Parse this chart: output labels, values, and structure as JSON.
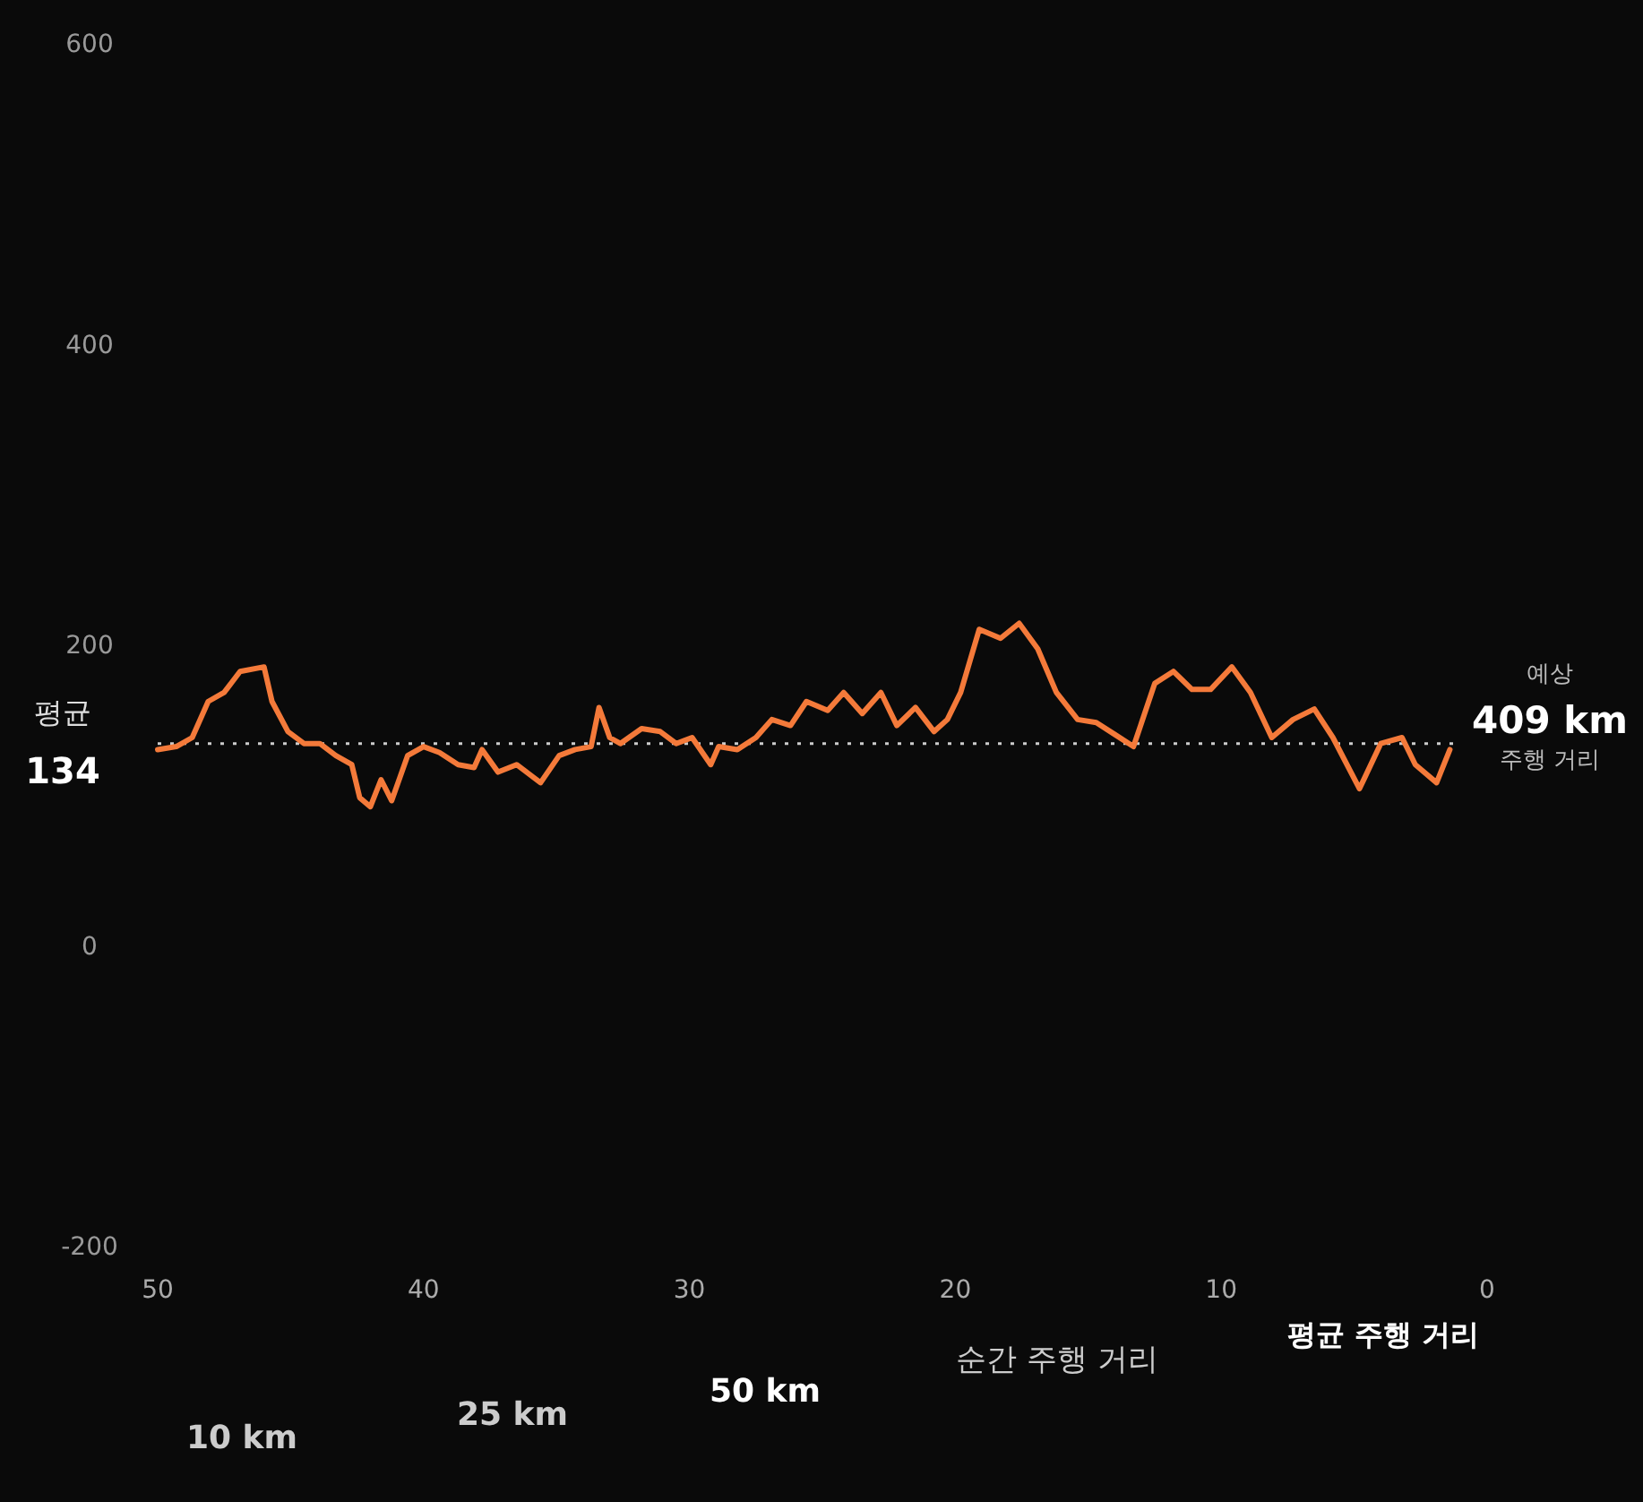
{
  "chart_data": {
    "type": "line",
    "x": [
      50,
      49.3,
      48.7,
      48.1,
      47.5,
      46.9,
      46,
      45.7,
      45.1,
      44.5,
      43.9,
      43.3,
      42.7,
      42.4,
      42,
      41.6,
      41.2,
      40.6,
      40,
      39.4,
      38.7,
      38.1,
      37.8,
      37.2,
      36.5,
      35.9,
      35.6,
      34.9,
      34.3,
      33.7,
      33.4,
      33,
      32.6,
      31.8,
      31.1,
      30.5,
      29.9,
      29.2,
      28.9,
      28.2,
      27.5,
      26.9,
      26.2,
      25.6,
      24.8,
      24.2,
      23.5,
      22.8,
      22.2,
      21.5,
      20.8,
      20.3,
      19.8,
      19.1,
      18.3,
      17.6,
      16.9,
      16.2,
      15.4,
      14.7,
      14,
      13.3,
      12.5,
      11.8,
      11.1,
      10.4,
      9.6,
      8.9,
      8.1,
      7.3,
      6.5,
      5.8,
      4.8,
      4,
      3.2,
      2.7,
      1.9,
      1.4
    ],
    "series": [
      {
        "color": "#f47a3a",
        "values": [
          130,
          132,
          138,
          162,
          168,
          182,
          185,
          162,
          142,
          134,
          134,
          126,
          120,
          98,
          92,
          110,
          96,
          126,
          132,
          128,
          120,
          118,
          130,
          115,
          120,
          112,
          108,
          126,
          130,
          132,
          158,
          138,
          134,
          144,
          142,
          134,
          138,
          120,
          132,
          130,
          138,
          150,
          146,
          162,
          156,
          168,
          154,
          168,
          146,
          158,
          142,
          150,
          168,
          210,
          204,
          214,
          197,
          168,
          150,
          148,
          140,
          132,
          174,
          182,
          170,
          170,
          185,
          168,
          138,
          150,
          157,
          138,
          104,
          134,
          138,
          120,
          108,
          130
        ]
      }
    ],
    "xlim": [
      50,
      0
    ],
    "xticks": [
      50,
      40,
      30,
      20,
      10,
      0
    ],
    "ylim": [
      -200,
      600
    ],
    "yticks": [
      -200,
      0,
      200,
      400,
      600
    ],
    "ref_lines": [
      {
        "axis": "y",
        "value": 134,
        "label": "평균 134",
        "color": "#cccccc",
        "line_style": "dotted"
      }
    ],
    "annotations": [
      "예상",
      "409 km",
      "주행 거리",
      "10 km",
      "25 km",
      "50 km",
      "순간 주행 거리",
      "평균 주행 거리"
    ],
    "grid": false
  }
}
